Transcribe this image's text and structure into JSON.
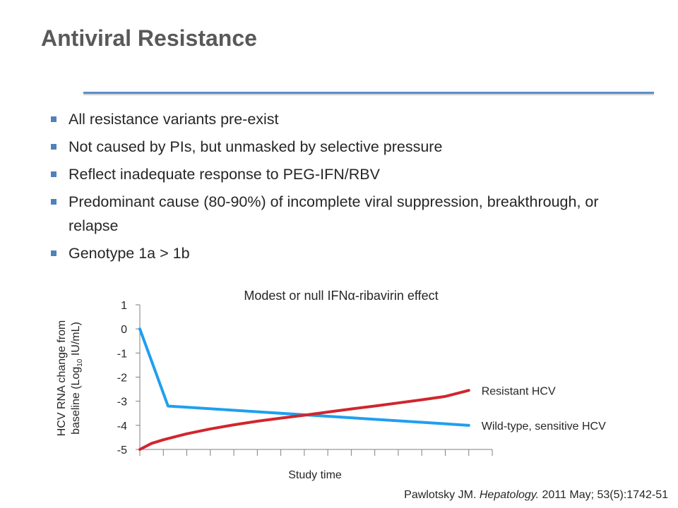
{
  "slide": {
    "title": "Antiviral Resistance",
    "bullets": [
      "All resistance variants pre-exist",
      "Not caused by PIs, but unmasked by selective pressure",
      "Reflect inadequate response to PEG-IFN/RBV",
      "Predominant cause (80-90%) of incomplete viral suppression, breakthrough, or relapse",
      "Genotype 1a > 1b"
    ],
    "citation": {
      "author": "Pawlotsky JM.",
      "journal": "Hepatology.",
      "details": "2011 May; 53(5):1742-51"
    }
  },
  "colors": {
    "accent_rule": "#5b8fc9",
    "bullet_marker": "#4f81bd",
    "wild_type": "#1f9fef",
    "resistant": "#d0262d"
  },
  "chart_data": {
    "type": "line",
    "title": "Modest or null IFNα-ribavirin effect",
    "xlabel": "Study time",
    "ylabel_line1": "HCV RNA change from",
    "ylabel_line2_prefix": "baseline (Log",
    "ylabel_subscript": "10",
    "ylabel_line2_suffix": " IU/mL)",
    "ylim": [
      -5,
      1
    ],
    "yticks": [
      "1",
      "0",
      "-1",
      "-2",
      "-3",
      "-4",
      "-5"
    ],
    "yticks_values": [
      1,
      0,
      -1,
      -2,
      -3,
      -4,
      -5
    ],
    "xlim": [
      0,
      15
    ],
    "xtick_count": 15,
    "grid": false,
    "series": [
      {
        "name": "Wild-type, sensitive HCV",
        "color": "#1f9fef",
        "x": [
          0,
          1.2,
          14
        ],
        "y": [
          0,
          -3.2,
          -4
        ]
      },
      {
        "name": "Resistant HCV",
        "color": "#d0262d",
        "x": [
          0,
          0.5,
          1,
          2,
          3,
          4,
          5,
          6,
          7,
          8,
          9,
          10,
          11,
          12,
          13,
          14
        ],
        "y": [
          -5,
          -4.75,
          -4.6,
          -4.35,
          -4.15,
          -3.98,
          -3.83,
          -3.7,
          -3.58,
          -3.45,
          -3.32,
          -3.2,
          -3.07,
          -2.94,
          -2.8,
          -2.55
        ]
      }
    ]
  }
}
